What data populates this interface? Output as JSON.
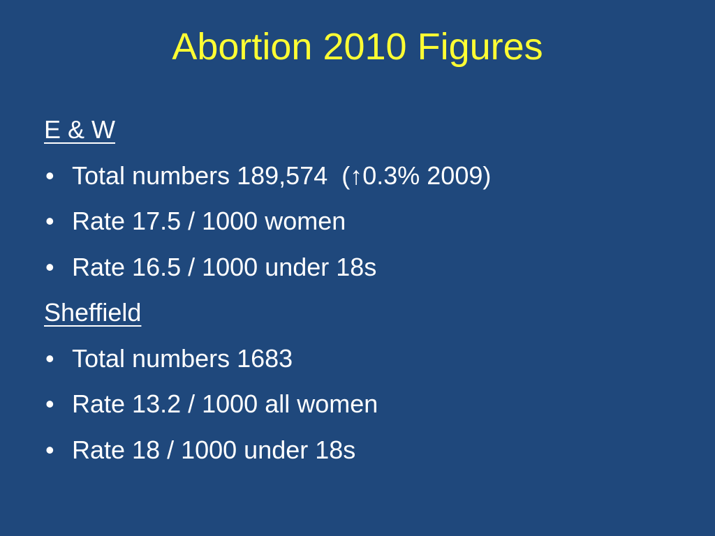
{
  "title": "Abortion 2010 Figures",
  "sections": [
    {
      "heading": "E & W",
      "bullets": [
        "Total numbers 189,574  (↑0.3% 2009)",
        "Rate 17.5 / 1000 women",
        "Rate 16.5 / 1000 under 18s"
      ]
    },
    {
      "heading": "Sheffield",
      "bullets": [
        "Total numbers 1683",
        "Rate 13.2 / 1000 all women",
        "Rate 18 / 1000 under 18s"
      ]
    }
  ]
}
